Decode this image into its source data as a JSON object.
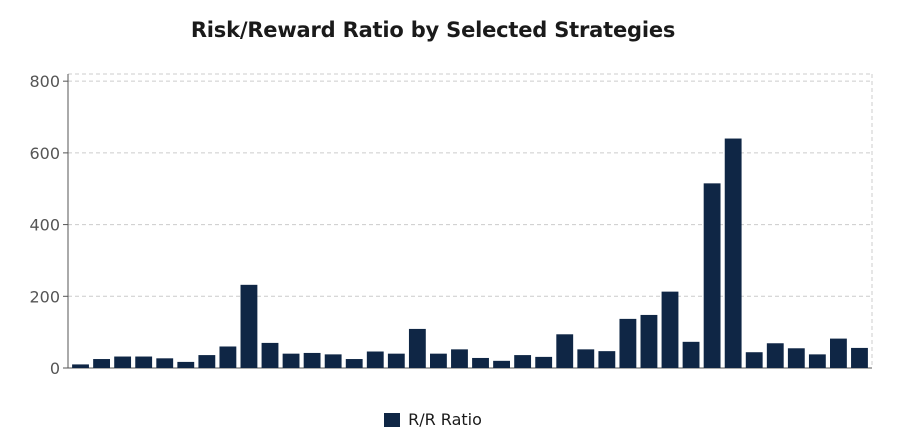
{
  "chart_data": {
    "type": "bar",
    "title": "Risk/Reward Ratio by Selected Strategies",
    "xlabel": "",
    "ylabel": "",
    "ylim": [
      0,
      820
    ],
    "yticks": [
      0,
      200,
      400,
      600,
      800
    ],
    "ytick_labels": [
      "0",
      "200",
      "400",
      "600",
      "800"
    ],
    "grid": "horizontal dashed",
    "legend_position": "bottom-center",
    "series": [
      {
        "name": "R/R Ratio",
        "color": "#0f2645",
        "values": [
          10,
          25,
          32,
          32,
          27,
          17,
          36,
          60,
          232,
          70,
          40,
          42,
          38,
          25,
          46,
          40,
          109,
          40,
          52,
          28,
          20,
          36,
          31,
          94,
          52,
          47,
          137,
          148,
          213,
          73,
          515,
          640,
          44,
          69,
          55,
          38,
          82,
          56
        ]
      }
    ]
  }
}
